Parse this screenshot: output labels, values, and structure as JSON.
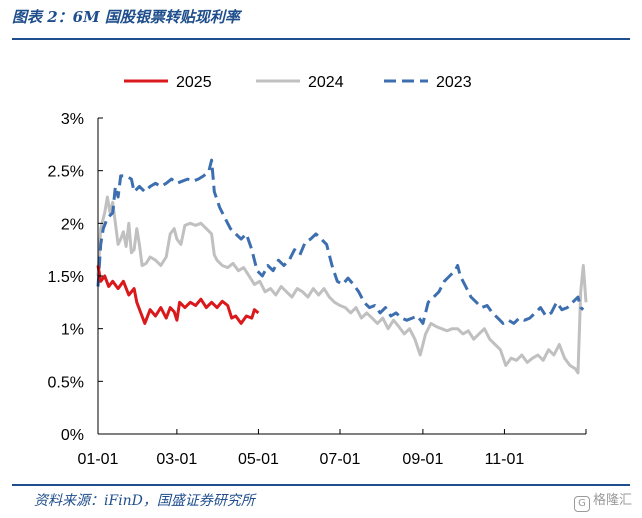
{
  "figure": {
    "title": "图表 2：6M 国股银票转贴现利率",
    "source": "资料来源：iFinD，国盛证券研究所",
    "watermark": "格隆汇"
  },
  "chart_data": {
    "type": "line",
    "title": "",
    "xlabel": "",
    "ylabel": "",
    "x_unit": "day of year",
    "xlim": [
      1,
      366
    ],
    "ylim": [
      0,
      3
    ],
    "x_ticks": [
      {
        "x": 1,
        "label": "01-01"
      },
      {
        "x": 60,
        "label": "03-01"
      },
      {
        "x": 121,
        "label": "05-01"
      },
      {
        "x": 182,
        "label": "07-01"
      },
      {
        "x": 244,
        "label": "09-01"
      },
      {
        "x": 305,
        "label": "11-01"
      }
    ],
    "y_ticks": [
      {
        "y": 0,
        "label": "0%"
      },
      {
        "y": 0.5,
        "label": "0.5%"
      },
      {
        "y": 1,
        "label": "1%"
      },
      {
        "y": 1.5,
        "label": "1.5%"
      },
      {
        "y": 2,
        "label": "2%"
      },
      {
        "y": 2.5,
        "label": "2.5%"
      },
      {
        "y": 3,
        "label": "3%"
      }
    ],
    "grid": false,
    "legend_position": "top",
    "series": [
      {
        "name": "2025",
        "color": "#d9191c",
        "style": "solid",
        "points": [
          [
            1,
            1.6
          ],
          [
            3,
            1.45
          ],
          [
            6,
            1.5
          ],
          [
            9,
            1.4
          ],
          [
            12,
            1.45
          ],
          [
            16,
            1.38
          ],
          [
            20,
            1.45
          ],
          [
            24,
            1.32
          ],
          [
            28,
            1.38
          ],
          [
            30,
            1.25
          ],
          [
            33,
            1.15
          ],
          [
            36,
            1.05
          ],
          [
            40,
            1.18
          ],
          [
            44,
            1.12
          ],
          [
            48,
            1.2
          ],
          [
            52,
            1.1
          ],
          [
            55,
            1.2
          ],
          [
            58,
            1.16
          ],
          [
            60,
            1.08
          ],
          [
            62,
            1.25
          ],
          [
            66,
            1.2
          ],
          [
            70,
            1.25
          ],
          [
            74,
            1.22
          ],
          [
            78,
            1.28
          ],
          [
            82,
            1.2
          ],
          [
            86,
            1.25
          ],
          [
            90,
            1.2
          ],
          [
            94,
            1.26
          ],
          [
            98,
            1.22
          ],
          [
            101,
            1.1
          ],
          [
            104,
            1.12
          ],
          [
            108,
            1.05
          ],
          [
            112,
            1.12
          ],
          [
            116,
            1.1
          ],
          [
            118,
            1.18
          ],
          [
            121,
            1.15
          ]
        ]
      },
      {
        "name": "2024",
        "color": "#c0c0c0",
        "style": "solid",
        "points": [
          [
            1,
            1.5
          ],
          [
            3,
            1.95
          ],
          [
            6,
            2.1
          ],
          [
            8,
            2.25
          ],
          [
            10,
            2.1
          ],
          [
            12,
            2.2
          ],
          [
            14,
            2.0
          ],
          [
            16,
            1.8
          ],
          [
            18,
            1.85
          ],
          [
            20,
            1.92
          ],
          [
            22,
            1.78
          ],
          [
            24,
            2.0
          ],
          [
            26,
            1.72
          ],
          [
            28,
            1.75
          ],
          [
            30,
            1.95
          ],
          [
            32,
            1.8
          ],
          [
            34,
            1.6
          ],
          [
            37,
            1.62
          ],
          [
            40,
            1.68
          ],
          [
            44,
            1.65
          ],
          [
            48,
            1.6
          ],
          [
            52,
            1.68
          ],
          [
            55,
            1.9
          ],
          [
            58,
            1.95
          ],
          [
            60,
            1.85
          ],
          [
            63,
            1.8
          ],
          [
            66,
            1.98
          ],
          [
            70,
            2.0
          ],
          [
            74,
            1.98
          ],
          [
            78,
            2.0
          ],
          [
            82,
            1.95
          ],
          [
            86,
            1.9
          ],
          [
            88,
            1.7
          ],
          [
            90,
            1.65
          ],
          [
            94,
            1.6
          ],
          [
            98,
            1.58
          ],
          [
            102,
            1.62
          ],
          [
            106,
            1.55
          ],
          [
            110,
            1.58
          ],
          [
            114,
            1.5
          ],
          [
            118,
            1.42
          ],
          [
            122,
            1.45
          ],
          [
            126,
            1.35
          ],
          [
            130,
            1.38
          ],
          [
            134,
            1.32
          ],
          [
            138,
            1.4
          ],
          [
            142,
            1.35
          ],
          [
            146,
            1.3
          ],
          [
            150,
            1.38
          ],
          [
            154,
            1.35
          ],
          [
            158,
            1.3
          ],
          [
            162,
            1.38
          ],
          [
            166,
            1.32
          ],
          [
            170,
            1.38
          ],
          [
            174,
            1.3
          ],
          [
            178,
            1.25
          ],
          [
            182,
            1.22
          ],
          [
            186,
            1.2
          ],
          [
            190,
            1.15
          ],
          [
            194,
            1.2
          ],
          [
            198,
            1.1
          ],
          [
            202,
            1.15
          ],
          [
            206,
            1.1
          ],
          [
            210,
            1.05
          ],
          [
            214,
            1.1
          ],
          [
            218,
            1.0
          ],
          [
            222,
            1.08
          ],
          [
            226,
            1.02
          ],
          [
            230,
            0.95
          ],
          [
            234,
            1.0
          ],
          [
            238,
            0.9
          ],
          [
            242,
            0.75
          ],
          [
            246,
            0.95
          ],
          [
            250,
            1.05
          ],
          [
            254,
            1.02
          ],
          [
            258,
            1.0
          ],
          [
            262,
            0.98
          ],
          [
            266,
            1.0
          ],
          [
            270,
            1.0
          ],
          [
            274,
            0.95
          ],
          [
            278,
            0.98
          ],
          [
            282,
            0.9
          ],
          [
            286,
            0.95
          ],
          [
            290,
            1.0
          ],
          [
            294,
            0.9
          ],
          [
            298,
            0.85
          ],
          [
            302,
            0.8
          ],
          [
            306,
            0.65
          ],
          [
            310,
            0.72
          ],
          [
            314,
            0.7
          ],
          [
            318,
            0.75
          ],
          [
            322,
            0.68
          ],
          [
            326,
            0.72
          ],
          [
            330,
            0.75
          ],
          [
            334,
            0.7
          ],
          [
            338,
            0.8
          ],
          [
            342,
            0.75
          ],
          [
            346,
            0.85
          ],
          [
            350,
            0.72
          ],
          [
            354,
            0.65
          ],
          [
            358,
            0.62
          ],
          [
            360,
            0.58
          ],
          [
            362,
            1.35
          ],
          [
            364,
            1.6
          ],
          [
            366,
            1.25
          ]
        ]
      },
      {
        "name": "2023",
        "color": "#3d6fb0",
        "style": "dashed",
        "points": [
          [
            1,
            1.4
          ],
          [
            3,
            1.8
          ],
          [
            5,
            1.95
          ],
          [
            8,
            2.05
          ],
          [
            12,
            2.1
          ],
          [
            14,
            2.35
          ],
          [
            16,
            2.25
          ],
          [
            18,
            2.45
          ],
          [
            22,
            2.45
          ],
          [
            26,
            2.42
          ],
          [
            28,
            2.3
          ],
          [
            32,
            2.35
          ],
          [
            36,
            2.3
          ],
          [
            40,
            2.35
          ],
          [
            44,
            2.38
          ],
          [
            48,
            2.35
          ],
          [
            52,
            2.38
          ],
          [
            56,
            2.42
          ],
          [
            60,
            2.38
          ],
          [
            64,
            2.4
          ],
          [
            68,
            2.42
          ],
          [
            72,
            2.4
          ],
          [
            76,
            2.42
          ],
          [
            80,
            2.45
          ],
          [
            84,
            2.5
          ],
          [
            86,
            2.6
          ],
          [
            88,
            2.3
          ],
          [
            92,
            2.15
          ],
          [
            96,
            2.05
          ],
          [
            100,
            1.95
          ],
          [
            104,
            1.9
          ],
          [
            108,
            1.85
          ],
          [
            112,
            1.9
          ],
          [
            116,
            1.75
          ],
          [
            120,
            1.55
          ],
          [
            124,
            1.5
          ],
          [
            128,
            1.6
          ],
          [
            132,
            1.55
          ],
          [
            136,
            1.65
          ],
          [
            140,
            1.6
          ],
          [
            144,
            1.65
          ],
          [
            148,
            1.75
          ],
          [
            152,
            1.7
          ],
          [
            156,
            1.82
          ],
          [
            160,
            1.85
          ],
          [
            164,
            1.9
          ],
          [
            168,
            1.85
          ],
          [
            172,
            1.8
          ],
          [
            176,
            1.6
          ],
          [
            180,
            1.45
          ],
          [
            184,
            1.42
          ],
          [
            188,
            1.48
          ],
          [
            192,
            1.42
          ],
          [
            196,
            1.35
          ],
          [
            200,
            1.25
          ],
          [
            204,
            1.2
          ],
          [
            208,
            1.22
          ],
          [
            212,
            1.15
          ],
          [
            216,
            1.2
          ],
          [
            220,
            1.12
          ],
          [
            224,
            1.15
          ],
          [
            228,
            1.1
          ],
          [
            232,
            1.08
          ],
          [
            236,
            1.1
          ],
          [
            240,
            1.12
          ],
          [
            244,
            1.05
          ],
          [
            248,
            1.25
          ],
          [
            252,
            1.3
          ],
          [
            256,
            1.35
          ],
          [
            260,
            1.45
          ],
          [
            264,
            1.5
          ],
          [
            268,
            1.55
          ],
          [
            270,
            1.6
          ],
          [
            272,
            1.5
          ],
          [
            276,
            1.4
          ],
          [
            280,
            1.3
          ],
          [
            284,
            1.25
          ],
          [
            288,
            1.2
          ],
          [
            292,
            1.22
          ],
          [
            296,
            1.15
          ],
          [
            300,
            1.1
          ],
          [
            304,
            1.05
          ],
          [
            308,
            1.08
          ],
          [
            312,
            1.05
          ],
          [
            316,
            1.1
          ],
          [
            320,
            1.08
          ],
          [
            324,
            1.1
          ],
          [
            328,
            1.15
          ],
          [
            332,
            1.2
          ],
          [
            336,
            1.12
          ],
          [
            340,
            1.15
          ],
          [
            344,
            1.25
          ],
          [
            348,
            1.18
          ],
          [
            352,
            1.2
          ],
          [
            356,
            1.25
          ],
          [
            360,
            1.3
          ],
          [
            362,
            1.2
          ],
          [
            364,
            1.18
          ]
        ]
      }
    ]
  }
}
